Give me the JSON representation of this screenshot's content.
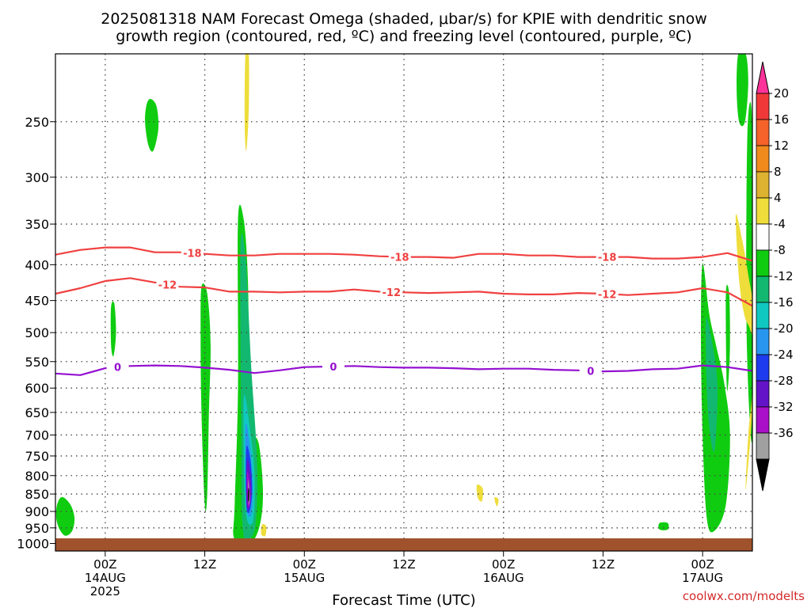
{
  "chart_data": {
    "type": "heatmap",
    "title_line1": "2025081318 NAM Forecast Omega (shaded, μbar/s) for KPIE with dendritic snow",
    "title_line2": "growth region (contoured, red, ºC) and freezing level (contoured, purple, ºC)",
    "xlabel": "Forecast Time (UTC)",
    "credit": "coolwx.com/modelts",
    "y_ticks": [
      250,
      300,
      350,
      400,
      450,
      500,
      550,
      600,
      650,
      700,
      750,
      800,
      850,
      900,
      950,
      1000
    ],
    "x_ticks": [
      {
        "hour": 6,
        "label": "00Z",
        "sub1": "14AUG",
        "sub2": "2025"
      },
      {
        "hour": 18,
        "label": "12Z",
        "sub1": "",
        "sub2": ""
      },
      {
        "hour": 30,
        "label": "00Z",
        "sub1": "15AUG",
        "sub2": ""
      },
      {
        "hour": 42,
        "label": "12Z",
        "sub1": "",
        "sub2": ""
      },
      {
        "hour": 54,
        "label": "00Z",
        "sub1": "16AUG",
        "sub2": ""
      },
      {
        "hour": 66,
        "label": "12Z",
        "sub1": "",
        "sub2": ""
      },
      {
        "hour": 78,
        "label": "00Z",
        "sub1": "17AUG",
        "sub2": ""
      }
    ],
    "x_range_hours": [
      0,
      84
    ],
    "y_range_hpa": [
      200,
      1025
    ],
    "y_scale": "log",
    "grid": true,
    "colorbar": {
      "labels": [
        "20",
        "16",
        "12",
        "8",
        "4",
        "-4",
        "-8",
        "-12",
        "-16",
        "-20",
        "-24",
        "-28",
        "-32",
        "-36"
      ],
      "colors": [
        "#ff3399",
        "#f03838",
        "#f5622a",
        "#f08a1c",
        "#ddb230",
        "#eedd3a",
        "#ffffff",
        "#10cc10",
        "#12b870",
        "#10c8c0",
        "#2896ee",
        "#1e3cee",
        "#6414c8",
        "#aa10c8",
        "#a0a0a0",
        "#000000"
      ]
    },
    "contours": [
      {
        "label": "-18",
        "color": "#f04040",
        "x": [
          0,
          3,
          6,
          9,
          12,
          15,
          18,
          21,
          24,
          27,
          30,
          33,
          36,
          39,
          42,
          45,
          48,
          51,
          54,
          57,
          60,
          63,
          66,
          69,
          72,
          75,
          78,
          81,
          84
        ],
        "y": [
          387,
          381,
          378,
          378,
          384,
          384,
          386,
          388,
          388,
          386,
          386,
          386,
          387,
          389,
          390,
          390,
          391,
          386,
          386,
          388,
          388,
          390,
          390,
          390,
          392,
          392,
          390,
          385,
          395
        ],
        "label_x": [
          16.5,
          41.5,
          66.5
        ]
      },
      {
        "label": "-12",
        "color": "#f04040",
        "x": [
          0,
          3,
          6,
          9,
          12,
          15,
          18,
          21,
          24,
          27,
          30,
          33,
          36,
          39,
          42,
          45,
          48,
          51,
          54,
          57,
          60,
          63,
          66,
          69,
          72,
          75,
          78,
          81,
          84
        ],
        "y": [
          440,
          432,
          422,
          418,
          424,
          430,
          431,
          437,
          437,
          438,
          437,
          437,
          434,
          437,
          438,
          439,
          438,
          437,
          440,
          441,
          441,
          439,
          440,
          442,
          440,
          438,
          432,
          438,
          458
        ],
        "label_x": [
          13.5,
          40.5,
          66.5
        ]
      },
      {
        "label": "0",
        "color": "#9410d0",
        "x": [
          0,
          3,
          6,
          9,
          12,
          15,
          18,
          21,
          24,
          27,
          30,
          33,
          36,
          39,
          42,
          45,
          48,
          51,
          54,
          57,
          60,
          63,
          66,
          69,
          72,
          75,
          78,
          81,
          84
        ],
        "y": [
          572,
          575,
          562,
          558,
          557,
          558,
          561,
          565,
          571,
          566,
          560,
          559,
          558,
          560,
          561,
          561,
          562,
          564,
          563,
          563,
          565,
          566,
          568,
          567,
          564,
          563,
          557,
          560,
          567
        ],
        "label_x": [
          7.5,
          33.5,
          64.5
        ]
      }
    ],
    "omega_regions": [
      {
        "v": -6,
        "x": [
          11,
          11.5,
          12.2,
          12.4,
          11.8,
          11.2,
          10.8
        ],
        "y": [
          236,
          232,
          238,
          256,
          275,
          270,
          250
        ]
      },
      {
        "v": -6,
        "x": [
          0.2,
          0.8,
          1.8,
          2.3,
          2.0,
          1.2,
          0.5,
          0.1
        ],
        "y": [
          880,
          858,
          880,
          920,
          960,
          975,
          955,
          920
        ]
      },
      {
        "v": -6,
        "x": [
          6.7,
          7.1,
          7.3,
          7.0,
          6.7
        ],
        "y": [
          460,
          455,
          500,
          540,
          520
        ]
      },
      {
        "v": -6,
        "x": [
          17.6,
          18.3,
          18.7,
          18.5,
          18.3,
          18.0,
          17.6,
          17.5
        ],
        "y": [
          430,
          440,
          520,
          650,
          850,
          880,
          650,
          500
        ]
      },
      {
        "v": -6,
        "x": [
          22.0,
          22.7,
          23.2,
          23.3,
          23.5,
          24.5,
          25.0,
          24.8,
          24.0,
          22.8,
          21.5,
          21.6,
          22.0
        ],
        "y": [
          345,
          345,
          420,
          560,
          680,
          720,
          830,
          920,
          985,
          1000,
          980,
          880,
          600
        ]
      },
      {
        "v": -6,
        "x": [
          78.0,
          78.8,
          79.6,
          80.6,
          81.3,
          80.8,
          79.4,
          78.5,
          78.0,
          77.8
        ],
        "y": [
          398,
          470,
          520,
          590,
          700,
          880,
          960,
          920,
          700,
          500
        ]
      },
      {
        "v": -6,
        "x": [
          80.8,
          81.2,
          81.3,
          81.1,
          80.9
        ],
        "y": [
          440,
          440,
          520,
          590,
          590
        ]
      },
      {
        "v": -6,
        "x": [
          82.3,
          83.2,
          83.5,
          83.1,
          82.4,
          82.1
        ],
        "y": [
          200,
          200,
          220,
          250,
          250,
          225
        ]
      },
      {
        "v": -6,
        "x": [
          83.4,
          84,
          84,
          83.3
        ],
        "y": [
          260,
          260,
          700,
          500
        ]
      },
      {
        "v": -6,
        "x": [
          72.8,
          73.8,
          73.8,
          72.8
        ],
        "y": [
          935,
          935,
          955,
          955
        ]
      },
      {
        "v": -10,
        "x": [
          22.3,
          22.9,
          23.6,
          24.3,
          24.2,
          23.6,
          22.6,
          22.4
        ],
        "y": [
          380,
          390,
          560,
          760,
          920,
          980,
          960,
          700
        ]
      },
      {
        "v": -10,
        "x": [
          78.4,
          79.2,
          79.8,
          79.4,
          78.6
        ],
        "y": [
          480,
          520,
          600,
          740,
          640
        ]
      },
      {
        "v": -14,
        "x": [
          22.7,
          23.4,
          24.0,
          23.8,
          22.9
        ],
        "y": [
          620,
          680,
          800,
          930,
          890
        ]
      },
      {
        "v": -18,
        "x": [
          22.9,
          23.4,
          23.8,
          23.6,
          23.0
        ],
        "y": [
          680,
          720,
          820,
          910,
          880
        ]
      },
      {
        "v": -22,
        "x": [
          23.0,
          23.5,
          23.7,
          23.4,
          23.0
        ],
        "y": [
          730,
          760,
          840,
          900,
          880
        ]
      },
      {
        "v": -26,
        "x": [
          23.1,
          23.5,
          23.6,
          23.3,
          23.0
        ],
        "y": [
          760,
          790,
          850,
          895,
          870
        ]
      },
      {
        "v": -30,
        "x": [
          23.1,
          23.4,
          23.5,
          23.2
        ],
        "y": [
          790,
          820,
          870,
          880
        ]
      },
      {
        "v": -34,
        "x": [
          23.2,
          23.4,
          23.3
        ],
        "y": [
          810,
          850,
          880
        ]
      },
      {
        "v": -38,
        "x": [
          23.24,
          23.35,
          23.3,
          23.2
        ],
        "y": [
          835,
          840,
          870,
          865
        ]
      },
      {
        "v": 6,
        "x": [
          22.9,
          23.3,
          23.3,
          23.0,
          22.8
        ],
        "y": [
          200,
          200,
          240,
          275,
          250
        ]
      },
      {
        "v": 6,
        "x": [
          24.9,
          25.4,
          25.3,
          24.8
        ],
        "y": [
          940,
          945,
          975,
          970
        ]
      },
      {
        "v": 6,
        "x": [
          50.8,
          51.5,
          51.4,
          50.9
        ],
        "y": [
          825,
          835,
          870,
          860
        ]
      },
      {
        "v": 6,
        "x": [
          52.9,
          53.4,
          53.2
        ],
        "y": [
          860,
          865,
          885
        ]
      },
      {
        "v": 6,
        "x": [
          82.0,
          82.8,
          83.6,
          84.0,
          84.0,
          83.6,
          83.0,
          82.4
        ],
        "y": [
          340,
          370,
          420,
          450,
          500,
          490,
          470,
          420
        ]
      },
      {
        "v": 6,
        "x": [
          84.0,
          84.0,
          83.2,
          83.5,
          84.0
        ],
        "y": [
          500,
          640,
          840,
          700,
          600
        ]
      }
    ]
  }
}
